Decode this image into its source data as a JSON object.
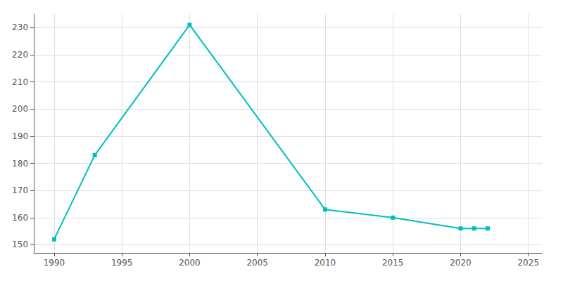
{
  "chart_data": {
    "type": "line",
    "x": [
      1990,
      1993,
      2000,
      2010,
      2015,
      2020,
      2021,
      2022
    ],
    "values": [
      152,
      183,
      231,
      163,
      160,
      156,
      156,
      156
    ],
    "color": "#00BFBF",
    "marker": "square",
    "xlim": [
      1988.5,
      2026
    ],
    "ylim": [
      147,
      235
    ],
    "xticks": [
      1990,
      1995,
      2000,
      2005,
      2010,
      2015,
      2020,
      2025
    ],
    "yticks": [
      150,
      160,
      170,
      180,
      190,
      200,
      210,
      220,
      230
    ],
    "grid": true
  }
}
